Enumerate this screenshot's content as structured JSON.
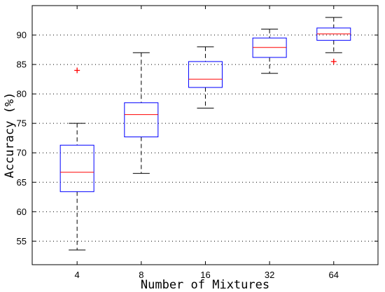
{
  "chart_data": {
    "type": "box",
    "xlabel": "Number of Mixtures",
    "ylabel": "Accuracy (%)",
    "ylim": [
      51,
      95
    ],
    "yticks": [
      55,
      60,
      65,
      70,
      75,
      80,
      85,
      90
    ],
    "grid": "horizontal-dotted",
    "colors": {
      "box": "#0000ff",
      "median": "#ff0000",
      "whisker": "#000000",
      "outlier": "#ff0000"
    },
    "categories": [
      "4",
      "8",
      "16",
      "32",
      "64"
    ],
    "boxes": [
      {
        "category": "4",
        "min": 53.5,
        "q1": 63.4,
        "median": 66.7,
        "q3": 71.3,
        "max": 75.0,
        "outliers": [
          84.0
        ]
      },
      {
        "category": "8",
        "min": 66.5,
        "q1": 72.7,
        "median": 76.5,
        "q3": 78.5,
        "max": 87.0,
        "outliers": []
      },
      {
        "category": "16",
        "min": 77.6,
        "q1": 81.1,
        "median": 82.5,
        "q3": 85.5,
        "max": 88.0,
        "outliers": []
      },
      {
        "category": "32",
        "min": 83.5,
        "q1": 86.2,
        "median": 87.9,
        "q3": 89.5,
        "max": 91.0,
        "outliers": []
      },
      {
        "category": "64",
        "min": 87.0,
        "q1": 89.1,
        "median": 90.2,
        "q3": 91.2,
        "max": 93.0,
        "outliers": [
          85.5
        ]
      }
    ]
  }
}
